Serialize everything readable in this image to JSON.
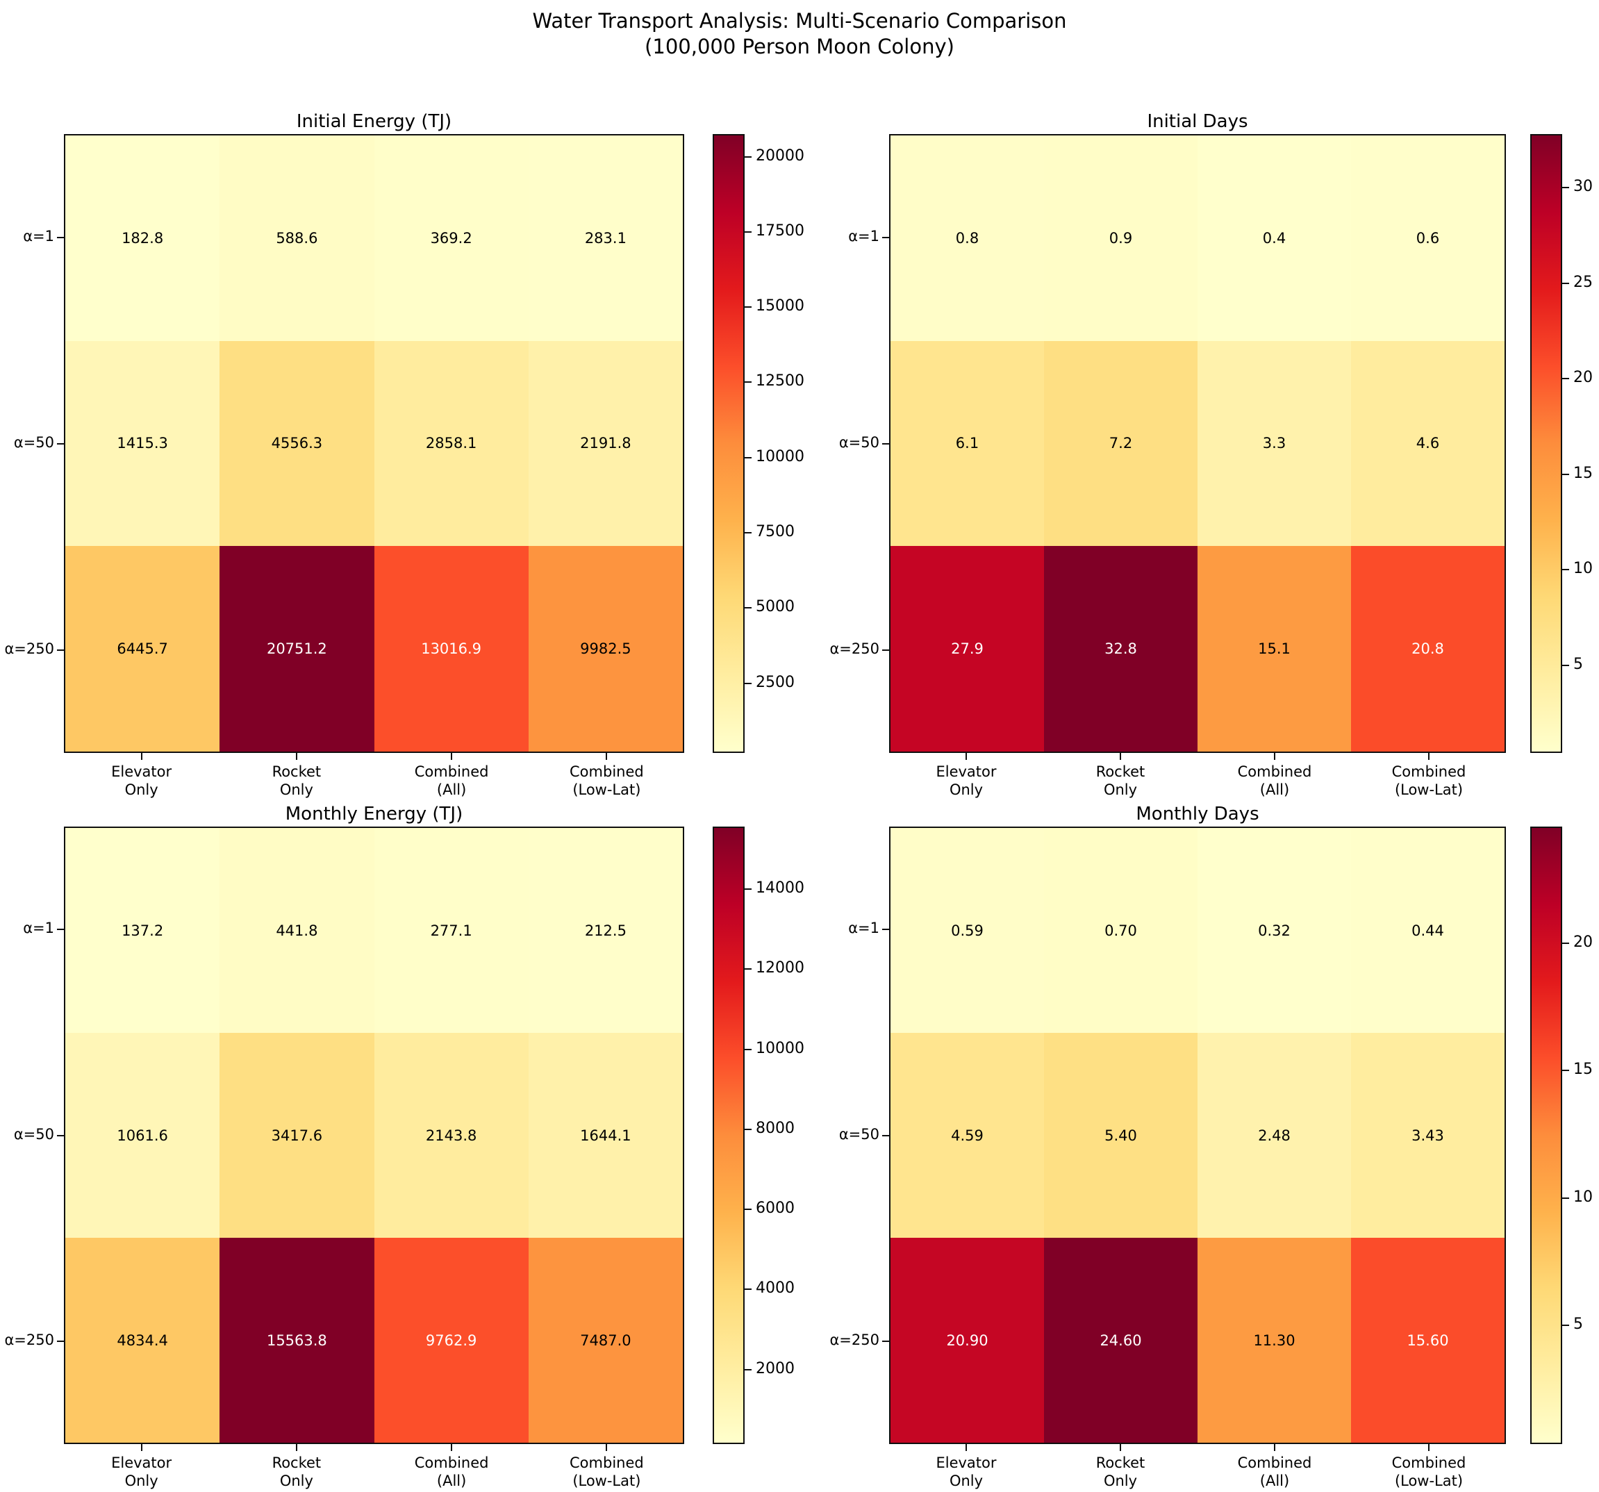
{
  "figure_title_line1": "Water Transport Analysis: Multi-Scenario Comparison",
  "figure_title_line2": "(100,000 Person Moon Colony)",
  "chart_data": [
    {
      "type": "heatmap",
      "title": "Initial Energy (TJ)",
      "rows": [
        "α=1",
        "α=50",
        "α=250"
      ],
      "columns": [
        "Elevator\nOnly",
        "Rocket\nOnly",
        "Combined\n(All)",
        "Combined\n(Low-Lat)"
      ],
      "values": [
        [
          182.8,
          588.6,
          369.2,
          283.1
        ],
        [
          1415.3,
          4556.3,
          2858.1,
          2191.8
        ],
        [
          6445.7,
          20751.2,
          13016.9,
          9982.5
        ]
      ],
      "cell_labels": [
        [
          "182.8",
          "588.6",
          "369.2",
          "283.1"
        ],
        [
          "1415.3",
          "4556.3",
          "2858.1",
          "2191.8"
        ],
        [
          "6445.7",
          "20751.2",
          "13016.9",
          "9982.5"
        ]
      ],
      "colormap": "YlOrRd",
      "vmin": 182.8,
      "vmax": 20751.2,
      "colorbar_ticks": [
        2500,
        5000,
        7500,
        10000,
        12500,
        15000,
        17500,
        20000
      ],
      "legend_position": "right-colorbar",
      "grid": false
    },
    {
      "type": "heatmap",
      "title": "Initial Days",
      "rows": [
        "α=1",
        "α=50",
        "α=250"
      ],
      "columns": [
        "Elevator\nOnly",
        "Rocket\nOnly",
        "Combined\n(All)",
        "Combined\n(Low-Lat)"
      ],
      "values": [
        [
          0.8,
          0.9,
          0.4,
          0.6
        ],
        [
          6.1,
          7.2,
          3.3,
          4.6
        ],
        [
          27.9,
          32.8,
          15.1,
          20.8
        ]
      ],
      "cell_labels": [
        [
          "0.8",
          "0.9",
          "0.4",
          "0.6"
        ],
        [
          "6.1",
          "7.2",
          "3.3",
          "4.6"
        ],
        [
          "27.9",
          "32.8",
          "15.1",
          "20.8"
        ]
      ],
      "colormap": "YlOrRd",
      "vmin": 0.4,
      "vmax": 32.8,
      "colorbar_ticks": [
        5,
        10,
        15,
        20,
        25,
        30
      ],
      "legend_position": "right-colorbar",
      "grid": false
    },
    {
      "type": "heatmap",
      "title": "Monthly Energy (TJ)",
      "rows": [
        "α=1",
        "α=50",
        "α=250"
      ],
      "columns": [
        "Elevator\nOnly",
        "Rocket\nOnly",
        "Combined\n(All)",
        "Combined\n(Low-Lat)"
      ],
      "values": [
        [
          137.2,
          441.8,
          277.1,
          212.5
        ],
        [
          1061.6,
          3417.6,
          2143.8,
          1644.1
        ],
        [
          4834.4,
          15563.8,
          9762.9,
          7487.0
        ]
      ],
      "cell_labels": [
        [
          "137.2",
          "441.8",
          "277.1",
          "212.5"
        ],
        [
          "1061.6",
          "3417.6",
          "2143.8",
          "1644.1"
        ],
        [
          "4834.4",
          "15563.8",
          "9762.9",
          "7487.0"
        ]
      ],
      "colormap": "YlOrRd",
      "vmin": 137.2,
      "vmax": 15563.8,
      "colorbar_ticks": [
        2000,
        4000,
        6000,
        8000,
        10000,
        12000,
        14000
      ],
      "legend_position": "right-colorbar",
      "grid": false
    },
    {
      "type": "heatmap",
      "title": "Monthly Days",
      "rows": [
        "α=1",
        "α=50",
        "α=250"
      ],
      "columns": [
        "Elevator\nOnly",
        "Rocket\nOnly",
        "Combined\n(All)",
        "Combined\n(Low-Lat)"
      ],
      "values": [
        [
          0.59,
          0.7,
          0.32,
          0.44
        ],
        [
          4.59,
          5.4,
          2.48,
          3.43
        ],
        [
          20.9,
          24.6,
          11.3,
          15.6
        ]
      ],
      "cell_labels": [
        [
          "0.59",
          "0.70",
          "0.32",
          "0.44"
        ],
        [
          "4.59",
          "5.40",
          "2.48",
          "3.43"
        ],
        [
          "20.90",
          "24.60",
          "11.30",
          "15.60"
        ]
      ],
      "colormap": "YlOrRd",
      "vmin": 0.32,
      "vmax": 24.6,
      "colorbar_ticks": [
        5,
        10,
        15,
        20
      ],
      "legend_position": "right-colorbar",
      "grid": false
    }
  ],
  "colors": {
    "colormap_stops": [
      "#ffffcc",
      "#ffeda0",
      "#fed976",
      "#feb24c",
      "#fd8d3c",
      "#fc4e2a",
      "#e31a1c",
      "#bd0026",
      "#800026"
    ],
    "cell_text_dark": "#000000",
    "cell_text_light": "#ffffff",
    "spine": "#0f0f0f",
    "background": "#ffffff"
  }
}
